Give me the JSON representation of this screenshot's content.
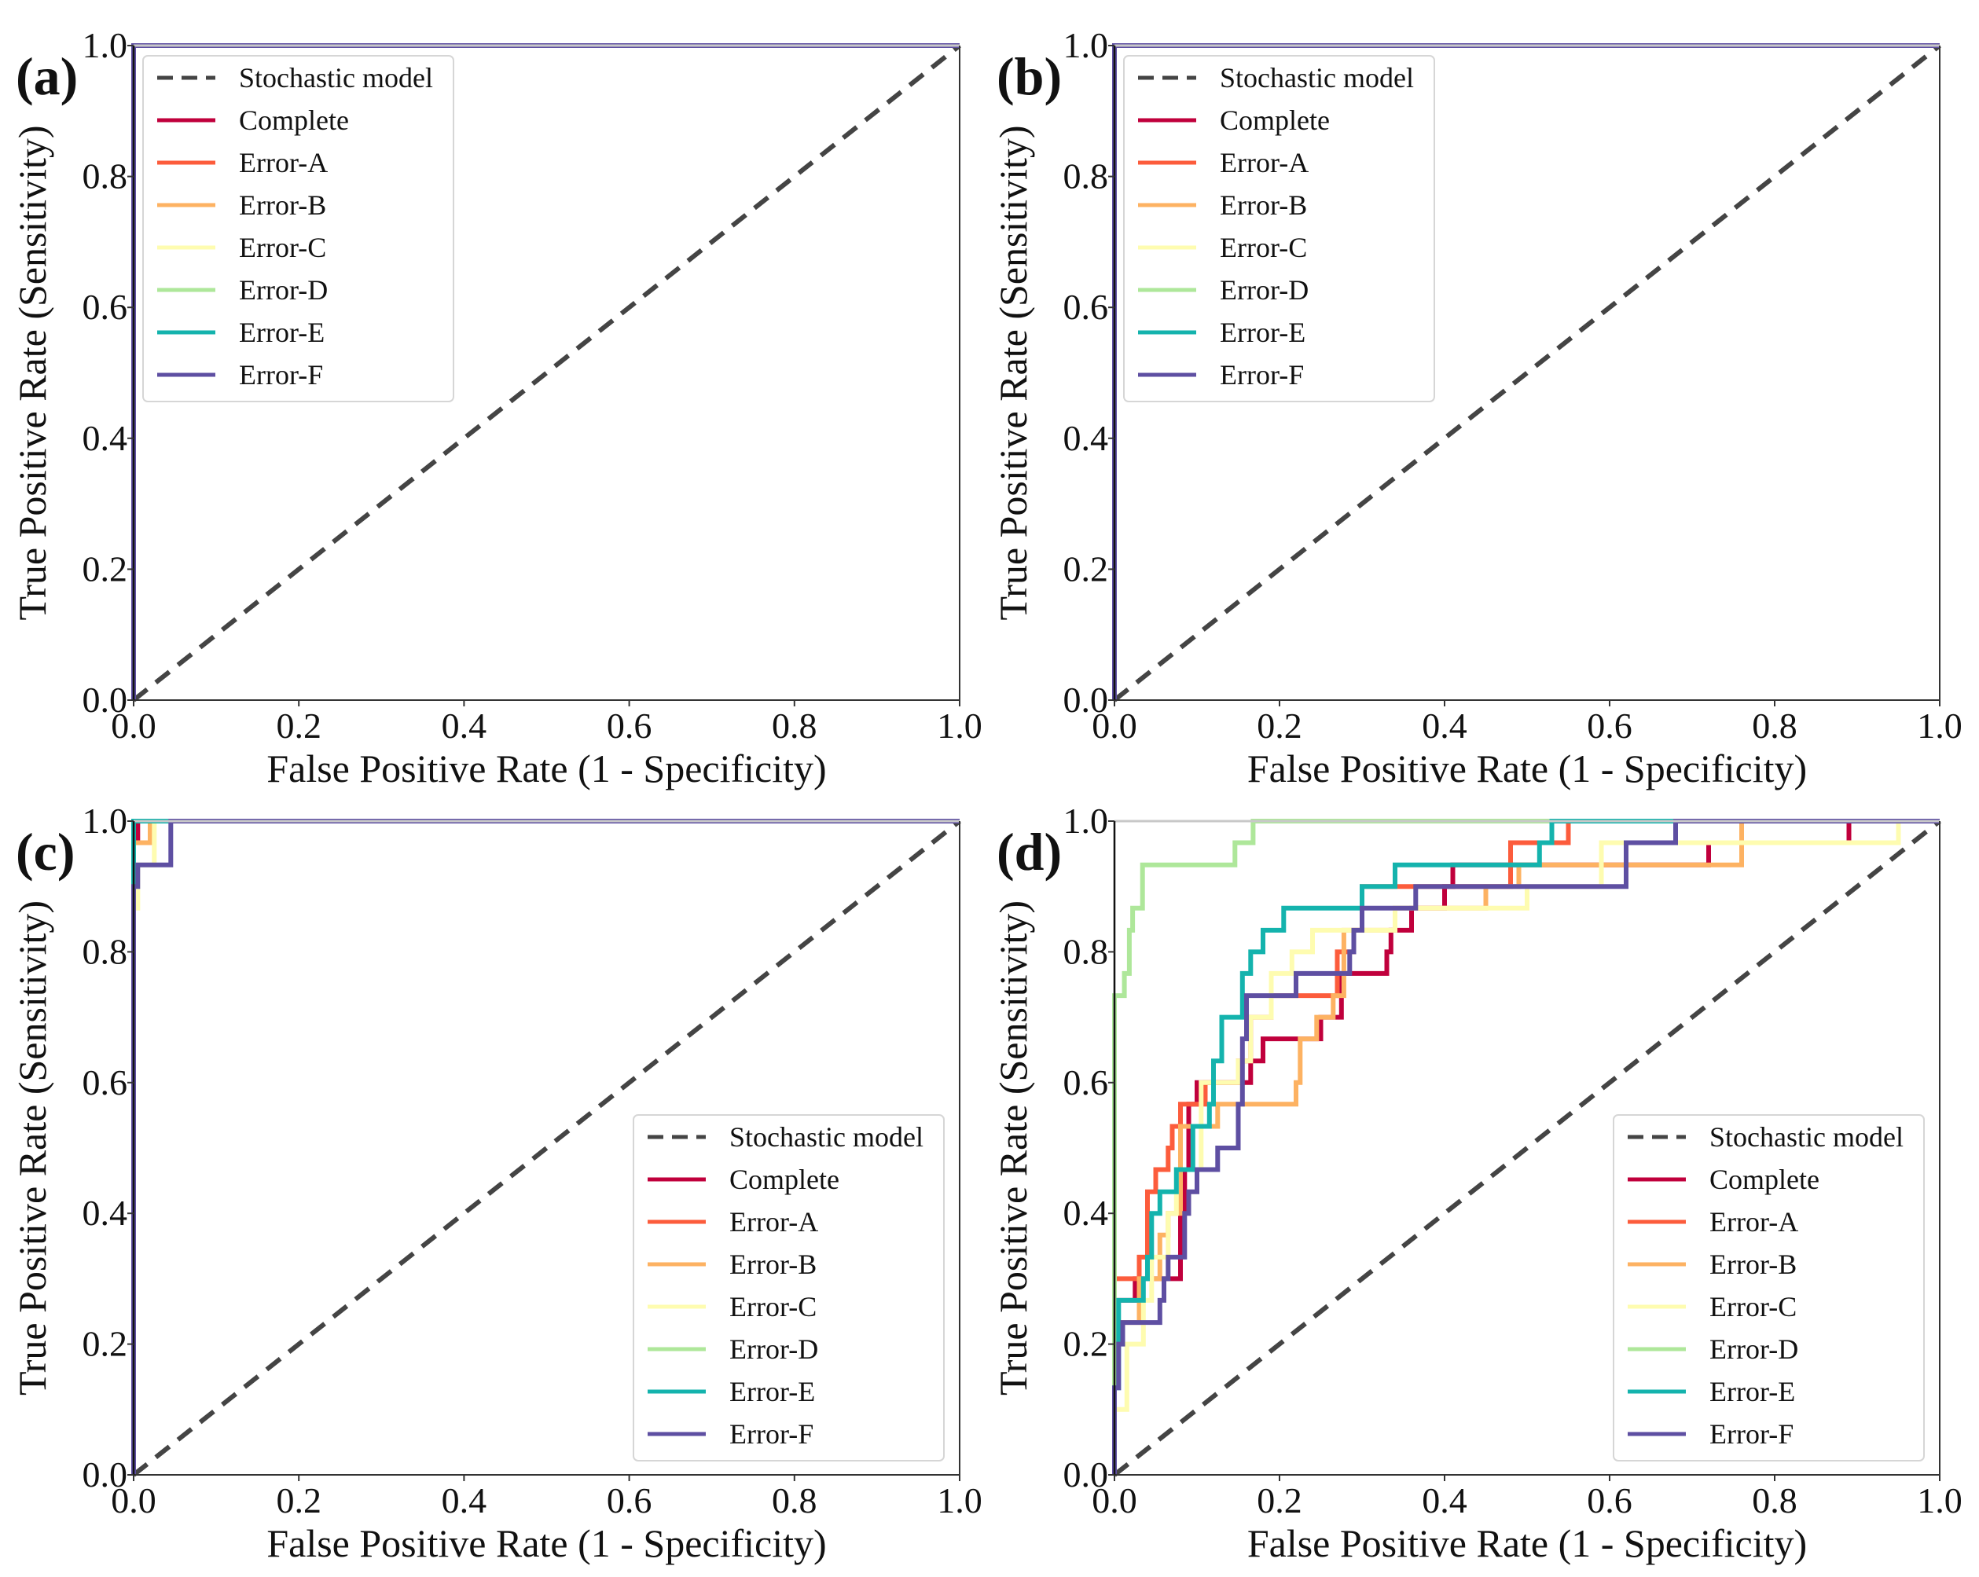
{
  "chart_data": [
    {
      "panel_label": "(a)",
      "type": "line",
      "title": "",
      "xlabel": "False Positive Rate (1 - Specificity)",
      "ylabel": "True Positive Rate (Sensitivity)",
      "xlim": [
        0,
        1
      ],
      "ylim": [
        0,
        1
      ],
      "xticks": [
        "0.0",
        "0.2",
        "0.4",
        "0.6",
        "0.8",
        "1.0"
      ],
      "yticks": [
        "0.0",
        "0.2",
        "0.4",
        "0.6",
        "0.8",
        "1.0"
      ],
      "grid": false,
      "legend_position": "upper-left",
      "series": [
        {
          "name": "Stochastic model",
          "color": "#444444",
          "dashed": true,
          "x": [
            0,
            1
          ],
          "y": [
            0,
            1
          ]
        },
        {
          "name": "Complete",
          "color": "#c0003c",
          "x": [
            0,
            0,
            1
          ],
          "y": [
            0,
            1,
            1
          ]
        },
        {
          "name": "Error-A",
          "color": "#fc5c3c",
          "x": [
            0,
            0,
            1
          ],
          "y": [
            0,
            1,
            1
          ]
        },
        {
          "name": "Error-B",
          "color": "#fdb262",
          "x": [
            0,
            0,
            1
          ],
          "y": [
            0,
            1,
            1
          ]
        },
        {
          "name": "Error-C",
          "color": "#fefcb0",
          "x": [
            0,
            0,
            1
          ],
          "y": [
            0,
            1,
            1
          ]
        },
        {
          "name": "Error-D",
          "color": "#aee79a",
          "x": [
            0,
            0,
            1
          ],
          "y": [
            0,
            1,
            1
          ]
        },
        {
          "name": "Error-E",
          "color": "#14b3ad",
          "x": [
            0,
            0,
            1
          ],
          "y": [
            0,
            1,
            1
          ]
        },
        {
          "name": "Error-F",
          "color": "#5e4fa2",
          "x": [
            0,
            0,
            1
          ],
          "y": [
            0,
            1,
            1
          ]
        }
      ]
    },
    {
      "panel_label": "(b)",
      "type": "line",
      "title": "",
      "xlabel": "False Positive Rate (1 - Specificity)",
      "ylabel": "True Positive Rate (Sensitivity)",
      "xlim": [
        0,
        1
      ],
      "ylim": [
        0,
        1
      ],
      "xticks": [
        "0.0",
        "0.2",
        "0.4",
        "0.6",
        "0.8",
        "1.0"
      ],
      "yticks": [
        "0.0",
        "0.2",
        "0.4",
        "0.6",
        "0.8",
        "1.0"
      ],
      "grid": false,
      "legend_position": "upper-left",
      "series": [
        {
          "name": "Stochastic model",
          "color": "#444444",
          "dashed": true,
          "x": [
            0,
            1
          ],
          "y": [
            0,
            1
          ]
        },
        {
          "name": "Complete",
          "color": "#c0003c",
          "x": [
            0,
            0,
            1
          ],
          "y": [
            0,
            1,
            1
          ]
        },
        {
          "name": "Error-A",
          "color": "#fc5c3c",
          "x": [
            0,
            0,
            1
          ],
          "y": [
            0,
            1,
            1
          ]
        },
        {
          "name": "Error-B",
          "color": "#fdb262",
          "x": [
            0,
            0,
            1
          ],
          "y": [
            0,
            1,
            1
          ]
        },
        {
          "name": "Error-C",
          "color": "#fefcb0",
          "x": [
            0,
            0,
            1
          ],
          "y": [
            0,
            1,
            1
          ]
        },
        {
          "name": "Error-D",
          "color": "#aee79a",
          "x": [
            0,
            0,
            1
          ],
          "y": [
            0,
            1,
            1
          ]
        },
        {
          "name": "Error-E",
          "color": "#14b3ad",
          "x": [
            0,
            0,
            1
          ],
          "y": [
            0,
            1,
            1
          ]
        },
        {
          "name": "Error-F",
          "color": "#5e4fa2",
          "x": [
            0,
            0,
            1
          ],
          "y": [
            0,
            1,
            1
          ]
        }
      ]
    },
    {
      "panel_label": "(c)",
      "type": "line",
      "title": "",
      "xlabel": "False Positive Rate (1 - Specificity)",
      "ylabel": "True Positive Rate (Sensitivity)",
      "xlim": [
        0,
        1
      ],
      "ylim": [
        0,
        1
      ],
      "xticks": [
        "0.0",
        "0.2",
        "0.4",
        "0.6",
        "0.8",
        "1.0"
      ],
      "yticks": [
        "0.0",
        "0.2",
        "0.4",
        "0.6",
        "0.8",
        "1.0"
      ],
      "grid": false,
      "legend_position": "lower-right",
      "series": [
        {
          "name": "Stochastic model",
          "color": "#444444",
          "dashed": true,
          "x": [
            0,
            1
          ],
          "y": [
            0,
            1
          ]
        },
        {
          "name": "Complete",
          "color": "#c0003c",
          "x": [
            0,
            0,
            0.005,
            0.005,
            1
          ],
          "y": [
            0,
            0.967,
            0.967,
            1,
            1
          ]
        },
        {
          "name": "Error-A",
          "color": "#fc5c3c",
          "x": [
            0,
            0,
            1
          ],
          "y": [
            0,
            1,
            1
          ]
        },
        {
          "name": "Error-B",
          "color": "#fdb262",
          "x": [
            0,
            0,
            0.02,
            0.02,
            1
          ],
          "y": [
            0,
            0.967,
            0.967,
            1,
            1
          ]
        },
        {
          "name": "Error-C",
          "color": "#fefcb0",
          "x": [
            0,
            0,
            0.005,
            0.005,
            0.025,
            0.025,
            1
          ],
          "y": [
            0,
            0.867,
            0.867,
            0.933,
            0.933,
            1,
            1
          ]
        },
        {
          "name": "Error-D",
          "color": "#aee79a",
          "x": [
            0,
            0,
            1
          ],
          "y": [
            0,
            1,
            1
          ]
        },
        {
          "name": "Error-E",
          "color": "#14b3ad",
          "x": [
            0,
            0,
            1
          ],
          "y": [
            0,
            1,
            1
          ]
        },
        {
          "name": "Error-F",
          "color": "#5e4fa2",
          "x": [
            0,
            0,
            0.005,
            0.005,
            0.045,
            0.045,
            1
          ],
          "y": [
            0,
            0.9,
            0.9,
            0.933,
            0.933,
            1,
            1
          ]
        }
      ]
    },
    {
      "panel_label": "(d)",
      "type": "line",
      "title": "",
      "xlabel": "False Positive Rate (1 - Specificity)",
      "ylabel": "True Positive Rate (Sensitivity)",
      "xlim": [
        0,
        1
      ],
      "ylim": [
        0,
        1
      ],
      "xticks": [
        "0.0",
        "0.2",
        "0.4",
        "0.6",
        "0.8",
        "1.0"
      ],
      "yticks": [
        "0.0",
        "0.2",
        "0.4",
        "0.6",
        "0.8",
        "1.0"
      ],
      "grid": false,
      "legend_position": "lower-right",
      "series": [
        {
          "name": "Stochastic model",
          "color": "#444444",
          "dashed": true,
          "x": [
            0,
            1
          ],
          "y": [
            0,
            1
          ]
        },
        {
          "name": "Complete",
          "color": "#c0003c",
          "x": [
            0,
            0,
            0.025,
            0.025,
            0.08,
            0.08,
            0.085,
            0.085,
            0.09,
            0.09,
            0.1,
            0.1,
            0.165,
            0.165,
            0.18,
            0.18,
            0.25,
            0.25,
            0.275,
            0.275,
            0.33,
            0.33,
            0.335,
            0.335,
            0.36,
            0.36,
            0.4,
            0.4,
            0.41,
            0.41,
            0.72,
            0.72,
            0.89,
            0.89,
            1
          ],
          "y": [
            0,
            0.267,
            0.267,
            0.3,
            0.3,
            0.4,
            0.4,
            0.467,
            0.467,
            0.567,
            0.567,
            0.6,
            0.6,
            0.633,
            0.633,
            0.667,
            0.667,
            0.7,
            0.7,
            0.767,
            0.767,
            0.8,
            0.8,
            0.833,
            0.833,
            0.867,
            0.867,
            0.9,
            0.9,
            0.933,
            0.933,
            0.967,
            0.967,
            1,
            1
          ]
        },
        {
          "name": "Error-A",
          "color": "#fc5c3c",
          "x": [
            0,
            0,
            0.03,
            0.03,
            0.04,
            0.04,
            0.05,
            0.05,
            0.065,
            0.065,
            0.07,
            0.07,
            0.08,
            0.08,
            0.11,
            0.11,
            0.15,
            0.15,
            0.165,
            0.165,
            0.19,
            0.19,
            0.27,
            0.27,
            0.29,
            0.29,
            0.3,
            0.3,
            0.48,
            0.48,
            0.55,
            0.55,
            1
          ],
          "y": [
            0,
            0.3,
            0.3,
            0.333,
            0.333,
            0.433,
            0.433,
            0.467,
            0.467,
            0.5,
            0.5,
            0.533,
            0.533,
            0.567,
            0.567,
            0.6,
            0.6,
            0.633,
            0.633,
            0.7,
            0.7,
            0.733,
            0.733,
            0.8,
            0.8,
            0.833,
            0.833,
            0.9,
            0.9,
            0.967,
            0.967,
            1,
            1
          ]
        },
        {
          "name": "Error-B",
          "color": "#fdb262",
          "x": [
            0,
            0,
            0.03,
            0.03,
            0.055,
            0.055,
            0.065,
            0.065,
            0.08,
            0.08,
            0.125,
            0.125,
            0.22,
            0.22,
            0.225,
            0.225,
            0.245,
            0.245,
            0.265,
            0.265,
            0.278,
            0.278,
            0.34,
            0.34,
            0.45,
            0.45,
            0.49,
            0.49,
            0.76,
            0.76,
            1
          ],
          "y": [
            0,
            0.233,
            0.233,
            0.3,
            0.3,
            0.367,
            0.367,
            0.4,
            0.4,
            0.533,
            0.533,
            0.567,
            0.567,
            0.6,
            0.6,
            0.667,
            0.667,
            0.7,
            0.7,
            0.733,
            0.733,
            0.833,
            0.833,
            0.867,
            0.867,
            0.9,
            0.9,
            0.933,
            0.933,
            1,
            1
          ]
        },
        {
          "name": "Error-C",
          "color": "#fefcb0",
          "x": [
            0,
            0,
            0.015,
            0.015,
            0.035,
            0.035,
            0.045,
            0.045,
            0.065,
            0.065,
            0.075,
            0.075,
            0.105,
            0.105,
            0.15,
            0.15,
            0.165,
            0.165,
            0.19,
            0.19,
            0.215,
            0.215,
            0.24,
            0.24,
            0.34,
            0.34,
            0.5,
            0.5,
            0.59,
            0.59,
            0.95,
            0.95,
            1
          ],
          "y": [
            0,
            0.1,
            0.1,
            0.2,
            0.2,
            0.267,
            0.267,
            0.333,
            0.333,
            0.4,
            0.4,
            0.467,
            0.467,
            0.6,
            0.6,
            0.633,
            0.633,
            0.7,
            0.7,
            0.767,
            0.767,
            0.8,
            0.8,
            0.833,
            0.833,
            0.867,
            0.867,
            0.9,
            0.9,
            0.967,
            0.967,
            1,
            1
          ]
        },
        {
          "name": "Error-D",
          "color": "#aee79a",
          "x": [
            0,
            0,
            0.012,
            0.012,
            0.018,
            0.018,
            0.022,
            0.022,
            0.034,
            0.034,
            0.146,
            0.146,
            0.168,
            0.168,
            1
          ],
          "y": [
            0,
            0.733,
            0.733,
            0.767,
            0.767,
            0.833,
            0.833,
            0.867,
            0.867,
            0.933,
            0.933,
            0.967,
            0.967,
            1,
            1
          ]
        },
        {
          "name": "Error-E",
          "color": "#14b3ad",
          "x": [
            0,
            0,
            0.005,
            0.005,
            0.035,
            0.035,
            0.04,
            0.04,
            0.045,
            0.045,
            0.055,
            0.055,
            0.075,
            0.075,
            0.095,
            0.095,
            0.115,
            0.115,
            0.12,
            0.12,
            0.13,
            0.13,
            0.155,
            0.155,
            0.165,
            0.165,
            0.18,
            0.18,
            0.205,
            0.205,
            0.3,
            0.3,
            0.34,
            0.34,
            0.515,
            0.515,
            0.53,
            0.53,
            1
          ],
          "y": [
            0,
            0.133,
            0.133,
            0.267,
            0.267,
            0.3,
            0.3,
            0.333,
            0.333,
            0.4,
            0.4,
            0.433,
            0.433,
            0.467,
            0.467,
            0.533,
            0.533,
            0.567,
            0.567,
            0.633,
            0.633,
            0.7,
            0.7,
            0.767,
            0.767,
            0.8,
            0.8,
            0.833,
            0.833,
            0.867,
            0.867,
            0.9,
            0.9,
            0.933,
            0.933,
            0.967,
            0.967,
            1,
            1
          ]
        },
        {
          "name": "Error-F",
          "color": "#5e4fa2",
          "x": [
            0,
            0,
            0.005,
            0.005,
            0.01,
            0.01,
            0.055,
            0.055,
            0.06,
            0.06,
            0.065,
            0.065,
            0.085,
            0.085,
            0.09,
            0.09,
            0.1,
            0.1,
            0.125,
            0.125,
            0.15,
            0.15,
            0.155,
            0.155,
            0.16,
            0.16,
            0.22,
            0.22,
            0.285,
            0.285,
            0.29,
            0.29,
            0.3,
            0.3,
            0.365,
            0.365,
            0.62,
            0.62,
            0.68,
            0.68,
            1
          ],
          "y": [
            0,
            0.133,
            0.133,
            0.2,
            0.2,
            0.233,
            0.233,
            0.267,
            0.267,
            0.3,
            0.3,
            0.333,
            0.333,
            0.4,
            0.4,
            0.433,
            0.433,
            0.467,
            0.467,
            0.5,
            0.5,
            0.567,
            0.567,
            0.667,
            0.667,
            0.733,
            0.733,
            0.767,
            0.767,
            0.8,
            0.8,
            0.833,
            0.833,
            0.867,
            0.867,
            0.9,
            0.9,
            0.967,
            0.967,
            1,
            1
          ]
        }
      ]
    }
  ]
}
